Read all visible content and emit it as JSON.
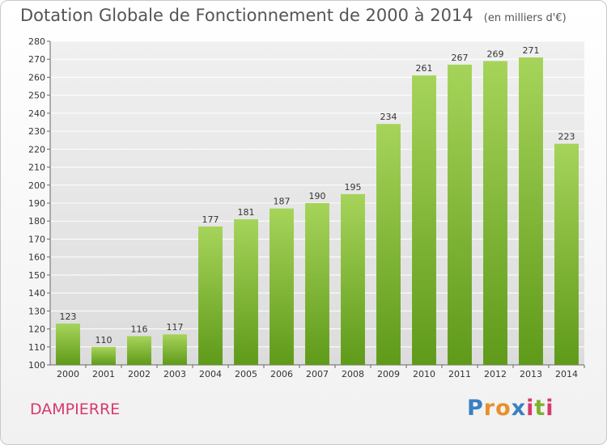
{
  "header": {
    "title": "Dotation Globale de Fonctionnement de 2000 à 2014",
    "subtitle": "(en milliers d'€)"
  },
  "footer": {
    "place": "DAMPIERRE",
    "logo": "Proxiti",
    "logo_colors": [
      "#3a7fc1",
      "#e8902a",
      "#e8902a",
      "#3a7fc1",
      "#d63a6d",
      "#7fb030",
      "#d63a6d"
    ]
  },
  "chart_data": {
    "type": "bar",
    "categories": [
      "2000",
      "2001",
      "2002",
      "2003",
      "2004",
      "2005",
      "2006",
      "2007",
      "2008",
      "2009",
      "2010",
      "2011",
      "2012",
      "2013",
      "2014"
    ],
    "values": [
      123,
      110,
      116,
      117,
      177,
      181,
      187,
      190,
      195,
      234,
      261,
      267,
      269,
      271,
      223
    ],
    "title": "Dotation Globale de Fonctionnement de 2000 à 2014",
    "subtitle": "(en milliers d'€)",
    "xlabel": "",
    "ylabel": "",
    "ylim": [
      100,
      280
    ],
    "ytick_step": 10,
    "grid": true,
    "bar_color_top": "#a6d45a",
    "bar_color_bottom": "#5f9a1a"
  }
}
